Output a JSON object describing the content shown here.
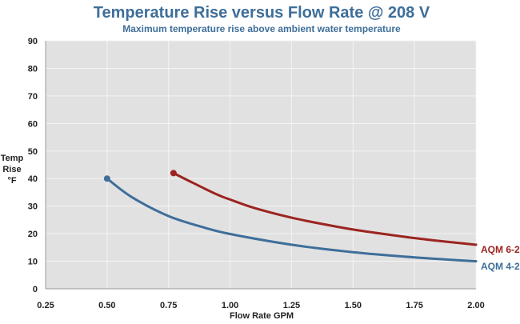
{
  "chart_data": {
    "type": "line",
    "title": "Temperature Rise versus Flow Rate @ 208 V",
    "subtitle": "Maximum temperature rise above ambient water temperature",
    "xlabel": "Flow Rate GPM",
    "ylabel_lines": [
      "Temp",
      "Rise",
      "°F"
    ],
    "xlim": [
      0.25,
      2.0
    ],
    "ylim": [
      0,
      90
    ],
    "x_ticks": [
      "0.25",
      "0.50",
      "0.75",
      "1.00",
      "1.25",
      "1.50",
      "1.75",
      "2.00"
    ],
    "x_tick_values": [
      0.25,
      0.5,
      0.75,
      1.0,
      1.25,
      1.5,
      1.75,
      2.0
    ],
    "y_ticks": [
      "0",
      "10",
      "20",
      "30",
      "40",
      "50",
      "60",
      "70",
      "80",
      "90"
    ],
    "y_tick_values": [
      0,
      10,
      20,
      30,
      40,
      50,
      60,
      70,
      80,
      90
    ],
    "grid": true,
    "colors": {
      "title": "#3e6e9a",
      "plot_bg": "#e1e1e1",
      "grid": "#f4f4f4",
      "axis": "#9a9a9a"
    },
    "series": [
      {
        "name": "AQM 6-2",
        "color": "#9b2420",
        "x": [
          0.77,
          0.85,
          0.95,
          1.0,
          1.1,
          1.25,
          1.4,
          1.5,
          1.6,
          1.75,
          1.9,
          2.0
        ],
        "values": [
          42,
          38.4,
          34.1,
          32.4,
          29.3,
          25.8,
          23.1,
          21.5,
          20.2,
          18.4,
          16.9,
          16
        ],
        "start_marker": true
      },
      {
        "name": "AQM 4-2",
        "color": "#3e6e9a",
        "x": [
          0.5,
          0.6,
          0.75,
          0.9,
          1.0,
          1.25,
          1.5,
          1.75,
          2.0
        ],
        "values": [
          40,
          33.3,
          26.4,
          22.1,
          19.9,
          16,
          13.3,
          11.4,
          10
        ],
        "start_marker": true
      }
    ]
  }
}
